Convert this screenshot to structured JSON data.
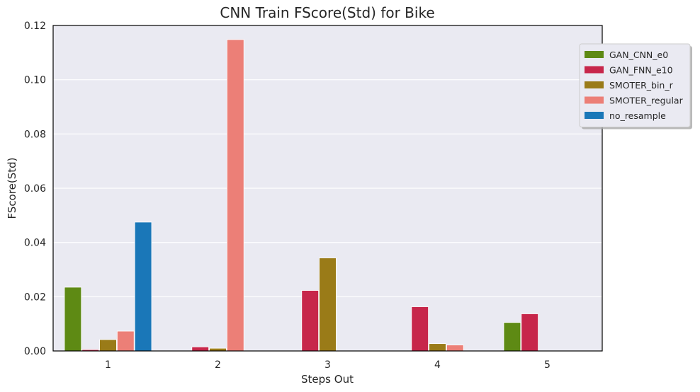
{
  "chart_data": {
    "type": "bar",
    "title": "CNN Train FScore(Std) for Bike",
    "xlabel": "Steps Out",
    "ylabel": "FScore(Std)",
    "categories": [
      "1",
      "2",
      "3",
      "4",
      "5"
    ],
    "ylim": [
      0,
      0.12
    ],
    "yticks": [
      "0.00",
      "0.02",
      "0.04",
      "0.06",
      "0.08",
      "0.10",
      "0.12"
    ],
    "grid": true,
    "legend_position": "top-right",
    "series": [
      {
        "name": "GAN_CNN_e0",
        "color": "#5e8a14",
        "values": [
          0.0235,
          0,
          0,
          0,
          0.0105
        ]
      },
      {
        "name": "GAN_FNN_e10",
        "color": "#c7264a",
        "values": [
          0.0005,
          0.0015,
          0.0223,
          0.0163,
          0.0137
        ]
      },
      {
        "name": "SMOTER_bin_r",
        "color": "#9a7b18",
        "values": [
          0.0042,
          0.001,
          0.0343,
          0.0027,
          0
        ]
      },
      {
        "name": "SMOTER_regular",
        "color": "#ec7f77",
        "values": [
          0.0073,
          0.1148,
          0,
          0.0022,
          0
        ]
      },
      {
        "name": "no_resample",
        "color": "#1a77b8",
        "values": [
          0.0475,
          0,
          0,
          0,
          0
        ]
      }
    ]
  }
}
